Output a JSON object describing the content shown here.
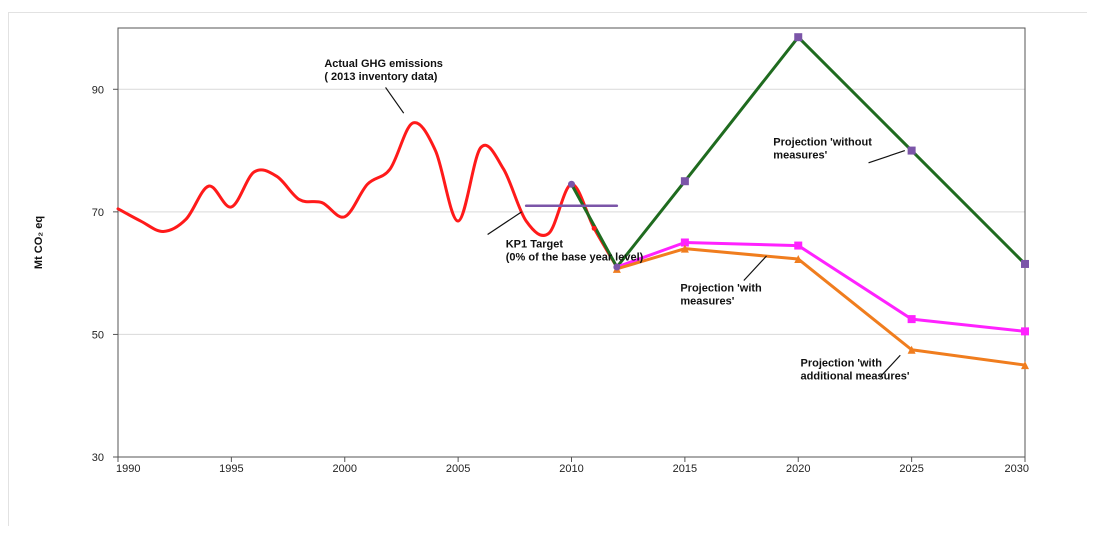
{
  "chart_data": {
    "type": "line",
    "ylabel": "Mt CO₂ eq",
    "xlabel": "",
    "xlim": [
      1990,
      2030
    ],
    "ylim": [
      30,
      100
    ],
    "x_ticks": [
      "1990",
      "1995",
      "2000",
      "2005",
      "2010",
      "2015",
      "2020",
      "2025",
      "2030"
    ],
    "y_ticks": [
      "30",
      "50",
      "70",
      "90"
    ],
    "grid": "horizontal",
    "series": [
      {
        "key": "actual",
        "color": "#ff1a1a",
        "marker": "none",
        "smooth": true,
        "points": [
          [
            1990,
            70.5
          ],
          [
            1991,
            68.5
          ],
          [
            1992,
            66.8
          ],
          [
            1993,
            68.8
          ],
          [
            1994,
            74.2
          ],
          [
            1995,
            70.8
          ],
          [
            1996,
            76.5
          ],
          [
            1997,
            75.8
          ],
          [
            1998,
            72.0
          ],
          [
            1999,
            71.5
          ],
          [
            2000,
            69.2
          ],
          [
            2001,
            74.5
          ],
          [
            2002,
            77.0
          ],
          [
            2003,
            84.5
          ],
          [
            2004,
            80.0
          ],
          [
            2005,
            68.5
          ],
          [
            2006,
            80.5
          ],
          [
            2007,
            77.0
          ],
          [
            2008,
            68.5
          ],
          [
            2009,
            66.5
          ],
          [
            2010,
            74.5
          ],
          [
            2011,
            67.3
          ],
          [
            2012,
            61.0
          ]
        ]
      },
      {
        "key": "without_measures",
        "color": "#1f6b1f",
        "marker": "square",
        "marker_color": "#7b55a8",
        "smooth": false,
        "points": [
          [
            2010,
            74.5
          ],
          [
            2012,
            61.0
          ],
          [
            2015,
            75.0
          ],
          [
            2020,
            98.5
          ],
          [
            2025,
            80.0
          ],
          [
            2030,
            61.5
          ]
        ]
      },
      {
        "key": "with_measures",
        "color": "#ff22ff",
        "marker": "square",
        "marker_color": "#ff22ff",
        "smooth": false,
        "points": [
          [
            2012,
            61.0
          ],
          [
            2015,
            65.0
          ],
          [
            2020,
            64.5
          ],
          [
            2025,
            52.5
          ],
          [
            2030,
            50.5
          ]
        ]
      },
      {
        "key": "with_additional_measures",
        "color": "#f07d1e",
        "marker": "triangle",
        "marker_color": "#f07d1e",
        "smooth": false,
        "points": [
          [
            2012,
            60.7
          ],
          [
            2015,
            64.0
          ],
          [
            2020,
            62.3
          ],
          [
            2025,
            47.5
          ],
          [
            2030,
            45.0
          ]
        ]
      },
      {
        "key": "kp1_target",
        "color": "#7b55a8",
        "marker": "none",
        "smooth": false,
        "points": [
          [
            2008,
            71.0
          ],
          [
            2012,
            71.0
          ]
        ]
      }
    ],
    "annotations": [
      {
        "key": "actual",
        "lines": [
          "Actual  GHG emissions",
          "( 2013   inventory data)"
        ],
        "text_at": [
          1999.1,
          93.6
        ],
        "arrow_from": [
          2001.8,
          90.3
        ],
        "arrow_to": [
          2002.6,
          86.1
        ]
      },
      {
        "key": "kp1",
        "lines": [
          "KP1 Target",
          "(0% of the base year level)"
        ],
        "text_at": [
          2007.1,
          64.2
        ],
        "arrow_from": [
          2006.3,
          66.3
        ],
        "arrow_to": [
          2007.8,
          70.0
        ]
      },
      {
        "key": "without",
        "lines": [
          "Projection 'without",
          "measures'"
        ],
        "text_at": [
          2018.9,
          80.8
        ],
        "arrow_from": [
          2023.1,
          78.0
        ],
        "arrow_to": [
          2024.7,
          80.0
        ]
      },
      {
        "key": "with",
        "lines": [
          "Projection 'with",
          "measures'"
        ],
        "text_at": [
          2014.8,
          57.0
        ],
        "arrow_from": [
          2017.6,
          58.8
        ],
        "arrow_to": [
          2018.6,
          62.8
        ]
      },
      {
        "key": "additional",
        "lines": [
          "Projection 'with",
          "additional  measures'"
        ],
        "text_at": [
          2020.1,
          44.8
        ],
        "arrow_from": [
          2023.6,
          43.0
        ],
        "arrow_to": [
          2024.5,
          46.6
        ]
      }
    ]
  }
}
